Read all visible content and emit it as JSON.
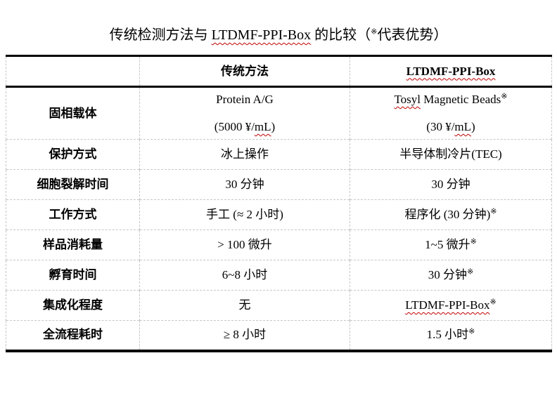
{
  "title": {
    "segments": [
      {
        "t": "传统检测方法与 "
      },
      {
        "t": "LTDMF-PPI-Box",
        "wavy": true
      },
      {
        "t": " 的比较（"
      },
      {
        "t": "※",
        "sup": true
      },
      {
        "t": "代表优势）"
      }
    ]
  },
  "table": {
    "header": {
      "label_col": {
        "segments": []
      },
      "traditional_col": {
        "segments": [
          {
            "t": "传统方法"
          }
        ]
      },
      "ltdmf_col": {
        "segments": [
          {
            "t": "LTDMF-PPI-Box",
            "wavy": true
          }
        ]
      }
    },
    "rows": [
      {
        "label": "固相载体",
        "traditional": {
          "lines": [
            [
              {
                "t": "Protein A/G"
              }
            ],
            [
              {
                "t": "(5000 ¥/"
              },
              {
                "t": "mL",
                "wavy": true
              },
              {
                "t": ")"
              }
            ]
          ]
        },
        "ltdmf": {
          "lines": [
            [
              {
                "t": "Tosyl",
                "wavy": true
              },
              {
                "t": " Magnetic Beads"
              },
              {
                "t": "※",
                "sup": true
              }
            ],
            [
              {
                "t": "(30 ¥/"
              },
              {
                "t": "mL",
                "wavy": true
              },
              {
                "t": ")"
              }
            ]
          ]
        }
      },
      {
        "label": "保护方式",
        "traditional": {
          "lines": [
            [
              {
                "t": "冰上操作"
              }
            ]
          ]
        },
        "ltdmf": {
          "lines": [
            [
              {
                "t": "半导体制冷片(TEC)"
              }
            ]
          ]
        }
      },
      {
        "label": "细胞裂解时间",
        "traditional": {
          "lines": [
            [
              {
                "t": "30 分钟"
              }
            ]
          ]
        },
        "ltdmf": {
          "lines": [
            [
              {
                "t": "30 分钟"
              }
            ]
          ]
        }
      },
      {
        "label": "工作方式",
        "traditional": {
          "lines": [
            [
              {
                "t": "手工 (≈ 2 小时)"
              }
            ]
          ]
        },
        "ltdmf": {
          "lines": [
            [
              {
                "t": "程序化 (30 分钟)"
              },
              {
                "t": "※",
                "sup": true
              }
            ]
          ]
        }
      },
      {
        "label": "样品消耗量",
        "traditional": {
          "lines": [
            [
              {
                "t": "> 100 微升"
              }
            ]
          ]
        },
        "ltdmf": {
          "lines": [
            [
              {
                "t": "1~5 微升"
              },
              {
                "t": "※",
                "sup": true
              }
            ]
          ]
        }
      },
      {
        "label": "孵育时间",
        "traditional": {
          "lines": [
            [
              {
                "t": "6~8 小时"
              }
            ]
          ]
        },
        "ltdmf": {
          "lines": [
            [
              {
                "t": "30 分钟"
              },
              {
                "t": "※",
                "sup": true
              }
            ]
          ]
        }
      },
      {
        "label": "集成化程度",
        "traditional": {
          "lines": [
            [
              {
                "t": "无"
              }
            ]
          ]
        },
        "ltdmf": {
          "lines": [
            [
              {
                "t": "LTDMF-PPI-Box",
                "wavy": true
              },
              {
                "t": "※",
                "sup": true
              }
            ]
          ]
        }
      },
      {
        "label": "全流程耗时",
        "traditional": {
          "lines": [
            [
              {
                "t": "≥ 8 小时"
              }
            ]
          ]
        },
        "ltdmf": {
          "lines": [
            [
              {
                "t": "1.5 小时"
              },
              {
                "t": "※",
                "sup": true
              }
            ]
          ]
        }
      }
    ]
  },
  "colors": {
    "text": "#000000",
    "spellcheck_wavy": "#c00000",
    "thick_rule": "#000000",
    "grid_line": "#c6c6c6"
  }
}
